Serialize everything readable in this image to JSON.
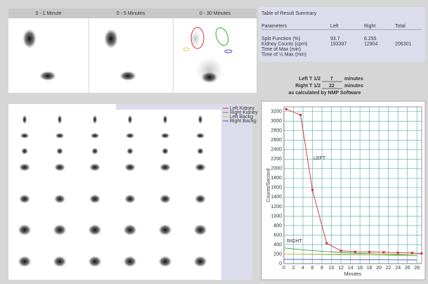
{
  "images": {
    "labels": [
      "0 - 1 Minute",
      "0 - 5 Minutes",
      "0 - 30 Minutes"
    ]
  },
  "summary": {
    "title": "Table of Result Summary",
    "header": [
      "Parameters",
      "Left",
      "Right",
      "Total"
    ],
    "rows": [
      [
        "Split Function (%)",
        "93.7",
        "6.255"
      ],
      [
        "Kidney Counts (cpm)",
        "193397",
        "12904",
        "206301"
      ],
      [
        "Time of Max (min)"
      ],
      [
        "Time of ½ Max (min)"
      ]
    ]
  },
  "halftime": {
    "left": {
      "label": "Left T 1/2",
      "value": "7",
      "unit": "minutes"
    },
    "right": {
      "label": "Right T 1/2",
      "value": "22",
      "unit": "minutes"
    },
    "note": "as calculated by NMP Software"
  },
  "chart_data": {
    "type": "line",
    "ylabel": "Counts/Second",
    "xlabel": "Minutes",
    "xlim": [
      0,
      29
    ],
    "ylim": [
      0,
      3300
    ],
    "xticks": [
      0,
      2,
      4,
      6,
      8,
      10,
      12,
      14,
      16,
      18,
      20,
      22,
      24,
      26,
      28
    ],
    "yticks": [
      0,
      200,
      400,
      600,
      800,
      1000,
      1200,
      1400,
      1600,
      1800,
      2000,
      2200,
      2400,
      2600,
      2800,
      3000,
      3200
    ],
    "grid": true,
    "annotations": [
      {
        "text": "LEFT"
      },
      {
        "text": "RIGHT"
      }
    ],
    "series": [
      {
        "name": "Left Kidney",
        "color": "#d43030",
        "markers": true,
        "x": [
          0.5,
          3.5,
          6,
          9,
          12,
          15,
          18,
          21,
          24,
          27,
          29
        ],
        "values": [
          3250,
          3130,
          1550,
          430,
          270,
          250,
          245,
          240,
          230,
          225,
          215
        ]
      },
      {
        "name": "Right Kidney",
        "color": "#3aa040",
        "markers": false,
        "x": [
          0,
          4,
          8,
          12,
          16,
          20,
          24,
          28
        ],
        "values": [
          330,
          290,
          260,
          235,
          215,
          200,
          185,
          170
        ]
      },
      {
        "name": "Left Backg",
        "color": "#d8c030",
        "markers": false,
        "x": [
          0,
          4,
          8,
          12,
          16,
          20,
          24,
          28
        ],
        "values": [
          200,
          195,
          190,
          185,
          180,
          175,
          170,
          165
        ]
      },
      {
        "name": "Right Backg",
        "color": "#4050c8",
        "markers": false,
        "x": [
          0,
          4,
          8,
          12,
          16,
          20,
          24,
          28
        ],
        "values": [
          90,
          88,
          86,
          84,
          82,
          80,
          78,
          76
        ]
      }
    ]
  }
}
